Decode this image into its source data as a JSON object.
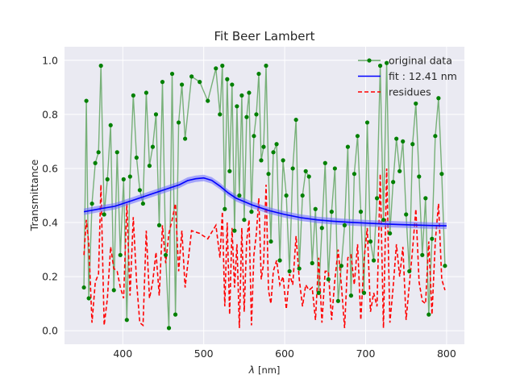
{
  "chart_data": {
    "type": "line",
    "title": "Fit Beer Lambert",
    "xlabel_symbol": "λ",
    "xlabel_unit": "[nm]",
    "ylabel": "Transmittance",
    "xlim": [
      328,
      822
    ],
    "ylim": [
      -0.05,
      1.05
    ],
    "xticks": [
      400,
      500,
      600,
      700,
      800
    ],
    "yticks": [
      0.0,
      0.2,
      0.4,
      0.6,
      0.8,
      1.0
    ],
    "xtick_labels": [
      "400",
      "500",
      "600",
      "700",
      "800"
    ],
    "ytick_labels": [
      "0.0",
      "0.2",
      "0.4",
      "0.6",
      "0.8",
      "1.0"
    ],
    "grid": true,
    "legend_position": "top-right",
    "colors": {
      "background": "#eaeaf2",
      "grid": "#ffffff",
      "data_line": "#6aaa6a",
      "data_marker": "#008000",
      "fit": "#0000ff",
      "fit_band": "#6a6aff",
      "residues": "#ff0000"
    },
    "series": [
      {
        "name": "original data",
        "style": "line-with-markers",
        "x": [
          352,
          355,
          358,
          362,
          366,
          370,
          373,
          377,
          381,
          385,
          389,
          393,
          397,
          401,
          405,
          409,
          413,
          417,
          421,
          425,
          429,
          433,
          437,
          441,
          445,
          449,
          453,
          457,
          461,
          465,
          469,
          473,
          477,
          485,
          495,
          505,
          515,
          520,
          523,
          526,
          529,
          532,
          535,
          538,
          541,
          544,
          547,
          550,
          553,
          556,
          559,
          562,
          565,
          568,
          571,
          574,
          577,
          580,
          583,
          586,
          590,
          594,
          598,
          602,
          606,
          610,
          614,
          618,
          622,
          626,
          630,
          634,
          638,
          642,
          646,
          650,
          654,
          658,
          662,
          666,
          670,
          674,
          678,
          682,
          686,
          690,
          694,
          698,
          702,
          706,
          710,
          714,
          718,
          722,
          726,
          730,
          734,
          738,
          742,
          746,
          750,
          754,
          758,
          762,
          766,
          770,
          774,
          778,
          782,
          786,
          790,
          794,
          798
        ],
        "y": [
          0.16,
          0.85,
          0.12,
          0.47,
          0.62,
          0.66,
          0.98,
          0.43,
          0.56,
          0.76,
          0.15,
          0.66,
          0.28,
          0.56,
          0.04,
          0.57,
          0.87,
          0.64,
          0.52,
          0.47,
          0.88,
          0.61,
          0.68,
          0.8,
          0.39,
          0.92,
          0.28,
          0.01,
          0.95,
          0.06,
          0.77,
          0.91,
          0.71,
          0.94,
          0.92,
          0.85,
          0.97,
          0.8,
          0.98,
          0.45,
          0.93,
          0.59,
          0.91,
          0.37,
          0.83,
          0.5,
          0.87,
          0.41,
          0.79,
          0.88,
          0.44,
          0.72,
          0.8,
          0.95,
          0.63,
          0.68,
          0.98,
          0.58,
          0.33,
          0.66,
          0.69,
          0.26,
          0.63,
          0.5,
          0.22,
          0.6,
          0.78,
          0.23,
          0.5,
          0.59,
          0.57,
          0.25,
          0.45,
          0.14,
          0.38,
          0.62,
          0.19,
          0.44,
          0.6,
          0.11,
          0.24,
          0.39,
          0.68,
          0.13,
          0.58,
          0.72,
          0.44,
          0.14,
          0.77,
          0.33,
          0.26,
          0.49,
          0.98,
          0.41,
          0.99,
          0.36,
          0.55,
          0.71,
          0.59,
          0.7,
          0.43,
          0.22,
          0.69,
          0.84,
          0.57,
          0.28,
          0.49,
          0.06,
          0.34,
          0.72,
          0.86,
          0.58,
          0.24
        ]
      },
      {
        "name": "fit : 12.41 nm",
        "style": "line-with-band",
        "x": [
          352,
          370,
          390,
          410,
          430,
          450,
          470,
          480,
          490,
          500,
          510,
          520,
          530,
          540,
          560,
          580,
          600,
          620,
          640,
          660,
          680,
          700,
          720,
          740,
          760,
          780,
          800
        ],
        "y": [
          0.44,
          0.45,
          0.46,
          0.48,
          0.5,
          0.52,
          0.54,
          0.555,
          0.562,
          0.565,
          0.556,
          0.535,
          0.51,
          0.49,
          0.465,
          0.445,
          0.43,
          0.418,
          0.41,
          0.405,
          0.401,
          0.398,
          0.395,
          0.393,
          0.391,
          0.389,
          0.388
        ]
      },
      {
        "name": "residues",
        "style": "dashed-line",
        "x": [
          352,
          355,
          358,
          362,
          366,
          370,
          373,
          377,
          381,
          385,
          389,
          393,
          397,
          401,
          405,
          409,
          413,
          417,
          421,
          425,
          429,
          433,
          437,
          441,
          445,
          449,
          453,
          457,
          461,
          465,
          469,
          473,
          477,
          485,
          495,
          505,
          515,
          520,
          523,
          526,
          529,
          532,
          535,
          538,
          541,
          544,
          547,
          550,
          553,
          556,
          559,
          562,
          565,
          568,
          571,
          574,
          577,
          580,
          583,
          586,
          590,
          594,
          598,
          602,
          606,
          610,
          614,
          618,
          622,
          626,
          630,
          634,
          638,
          642,
          646,
          650,
          654,
          658,
          662,
          666,
          670,
          674,
          678,
          682,
          686,
          690,
          694,
          698,
          702,
          706,
          710,
          714,
          718,
          722,
          726,
          730,
          734,
          738,
          742,
          746,
          750,
          754,
          758,
          762,
          766,
          770,
          774,
          778,
          782,
          786,
          790,
          794,
          798
        ],
        "y": [
          0.28,
          0.41,
          0.32,
          0.03,
          0.18,
          0.21,
          0.54,
          0.02,
          0.12,
          0.31,
          0.23,
          0.22,
          0.16,
          0.12,
          0.47,
          0.13,
          0.42,
          0.18,
          0.03,
          0.02,
          0.37,
          0.12,
          0.18,
          0.29,
          0.13,
          0.39,
          0.25,
          0.36,
          0.41,
          0.47,
          0.22,
          0.37,
          0.16,
          0.37,
          0.36,
          0.34,
          0.39,
          0.27,
          0.44,
          0.09,
          0.4,
          0.06,
          0.38,
          0.16,
          0.32,
          0.01,
          0.38,
          0.07,
          0.33,
          0.41,
          0.02,
          0.28,
          0.36,
          0.49,
          0.19,
          0.25,
          0.54,
          0.15,
          0.1,
          0.22,
          0.26,
          0.17,
          0.2,
          0.08,
          0.21,
          0.17,
          0.35,
          0.19,
          0.09,
          0.17,
          0.15,
          0.16,
          0.04,
          0.27,
          0.03,
          0.22,
          0.22,
          0.04,
          0.19,
          0.3,
          0.17,
          0.01,
          0.27,
          0.28,
          0.17,
          0.32,
          0.04,
          0.26,
          0.38,
          0.07,
          0.14,
          0.09,
          0.58,
          0.01,
          0.6,
          0.03,
          0.16,
          0.32,
          0.2,
          0.31,
          0.04,
          0.17,
          0.3,
          0.45,
          0.18,
          0.11,
          0.1,
          0.33,
          0.06,
          0.33,
          0.47,
          0.19,
          0.15
        ]
      }
    ]
  }
}
